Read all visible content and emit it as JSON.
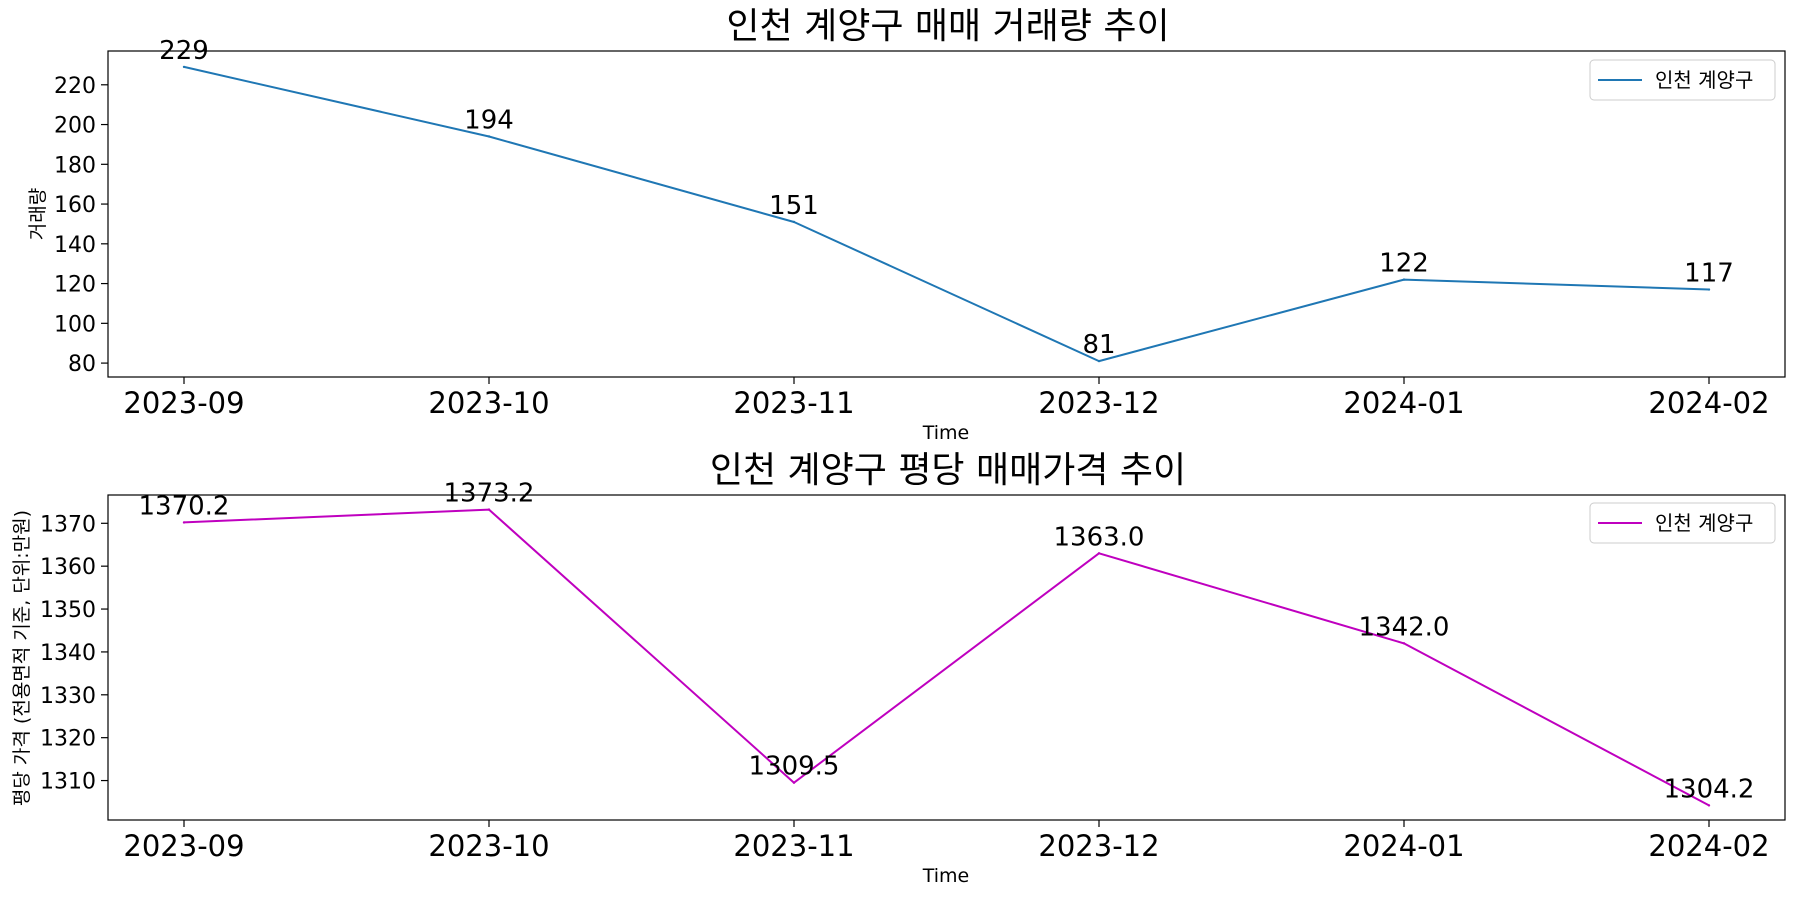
{
  "chart_data": [
    {
      "type": "line",
      "title": "인천 계양구 매매 거래량 추이",
      "xlabel": "Time",
      "ylabel": "거래량",
      "categories": [
        "2023-09",
        "2023-10",
        "2023-11",
        "2023-12",
        "2024-01",
        "2024-02"
      ],
      "series": [
        {
          "name": "인천 계양구",
          "color": "#1f77b4",
          "values": [
            229,
            194,
            151,
            81,
            122,
            117
          ]
        }
      ],
      "data_labels": [
        "229",
        "194",
        "151",
        "81",
        "122",
        "117"
      ],
      "yticks": [
        80,
        100,
        120,
        140,
        160,
        180,
        200,
        220
      ],
      "ytick_labels": [
        "80",
        "100",
        "120",
        "140",
        "160",
        "180",
        "200",
        "220"
      ],
      "ylim": [
        73,
        237
      ],
      "legend_position": "top-right",
      "grid": false
    },
    {
      "type": "line",
      "title": "인천 계양구 평당 매매가격 추이",
      "xlabel": "Time",
      "ylabel": "평당 가격 (전용면적 기준, 단위:만원)",
      "categories": [
        "2023-09",
        "2023-10",
        "2023-11",
        "2023-12",
        "2024-01",
        "2024-02"
      ],
      "series": [
        {
          "name": "인천 계양구",
          "color": "#bf00bf",
          "values": [
            1370.2,
            1373.2,
            1309.5,
            1363.0,
            1342.0,
            1304.2
          ]
        }
      ],
      "data_labels": [
        "1370.2",
        "1373.2",
        "1309.5",
        "1363.0",
        "1342.0",
        "1304.2"
      ],
      "yticks": [
        1310,
        1320,
        1330,
        1340,
        1350,
        1360,
        1370
      ],
      "ytick_labels": [
        "1310",
        "1320",
        "1330",
        "1340",
        "1350",
        "1360",
        "1370"
      ],
      "ylim": [
        1300.8,
        1376.6
      ],
      "legend_position": "top-right",
      "grid": false
    }
  ]
}
